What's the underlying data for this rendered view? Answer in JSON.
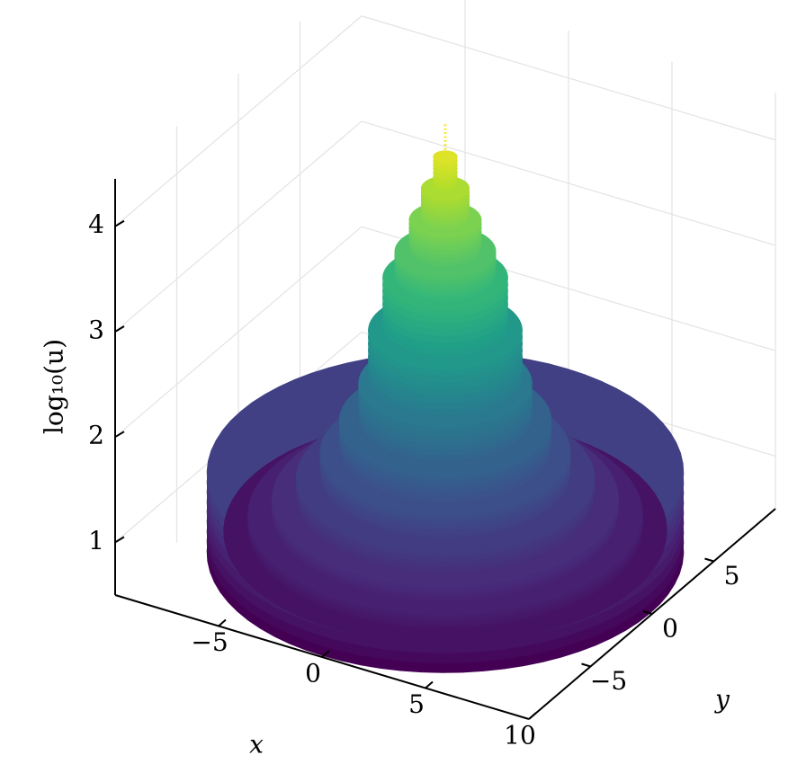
{
  "chart_data": {
    "type": "surface",
    "x_label": "x",
    "y_label": "y",
    "z_label": "log₁₀(u)",
    "xlim": [
      -10,
      10
    ],
    "ylim": [
      -10,
      10
    ],
    "zlim": [
      0.5,
      4.45
    ],
    "xticks": [
      {
        "value": -5,
        "label": "−5"
      },
      0,
      5,
      10
    ],
    "yticks": [
      {
        "value": -5,
        "label": "−5"
      },
      0,
      5
    ],
    "zticks": [
      1,
      2,
      3,
      4
    ],
    "grid": true,
    "colormap": "viridis",
    "x": [
      9.9,
      9.2,
      8.2,
      7.2,
      6.2,
      5.2,
      4.4,
      3.6,
      3.2,
      2.6,
      2.1,
      1.5,
      1.0,
      0.5,
      0.05
    ],
    "values": [
      1.25,
      0.7,
      0.85,
      1.0,
      1.2,
      1.45,
      1.75,
      2.1,
      2.6,
      3.1,
      3.35,
      3.65,
      3.95,
      4.25,
      4.55
    ]
  }
}
